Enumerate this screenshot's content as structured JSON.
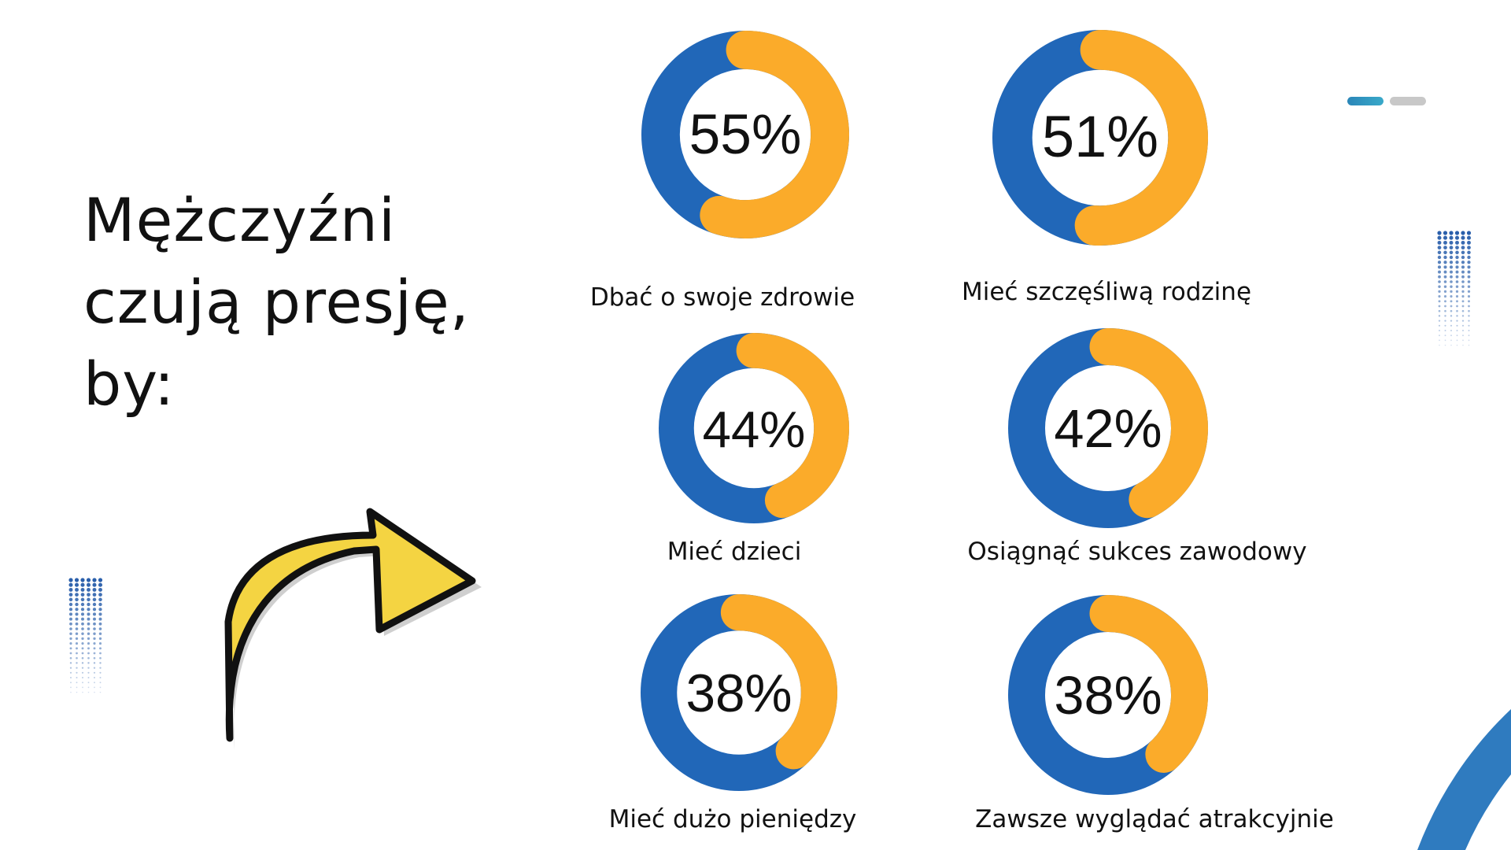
{
  "title_lines": [
    "Mężczyźni",
    "czują presję,",
    "by:"
  ],
  "colors": {
    "blue": "#2167b8",
    "orange": "#fbab2a",
    "arc": "#2f7bbf",
    "arrow": "#f4d442"
  },
  "chart_data": {
    "type": "donut",
    "title": "Mężczyźni czują presję, by:",
    "unit": "%",
    "items": [
      {
        "label": "Dbać o swoje zdrowie",
        "value": 55,
        "display": "55%"
      },
      {
        "label": "Mieć szczęśliwą rodzinę",
        "value": 51,
        "display": "51%"
      },
      {
        "label": "Mieć dzieci",
        "value": 44,
        "display": "44%"
      },
      {
        "label": "Osiągnąć sukces zawodowy",
        "value": 42,
        "display": "42%"
      },
      {
        "label": "Mieć dużo pieniędzy",
        "value": 38,
        "display": "38%"
      },
      {
        "label": "Zawsze wyglądać atrakcyjnie",
        "value": 38,
        "display": "38%"
      }
    ]
  }
}
